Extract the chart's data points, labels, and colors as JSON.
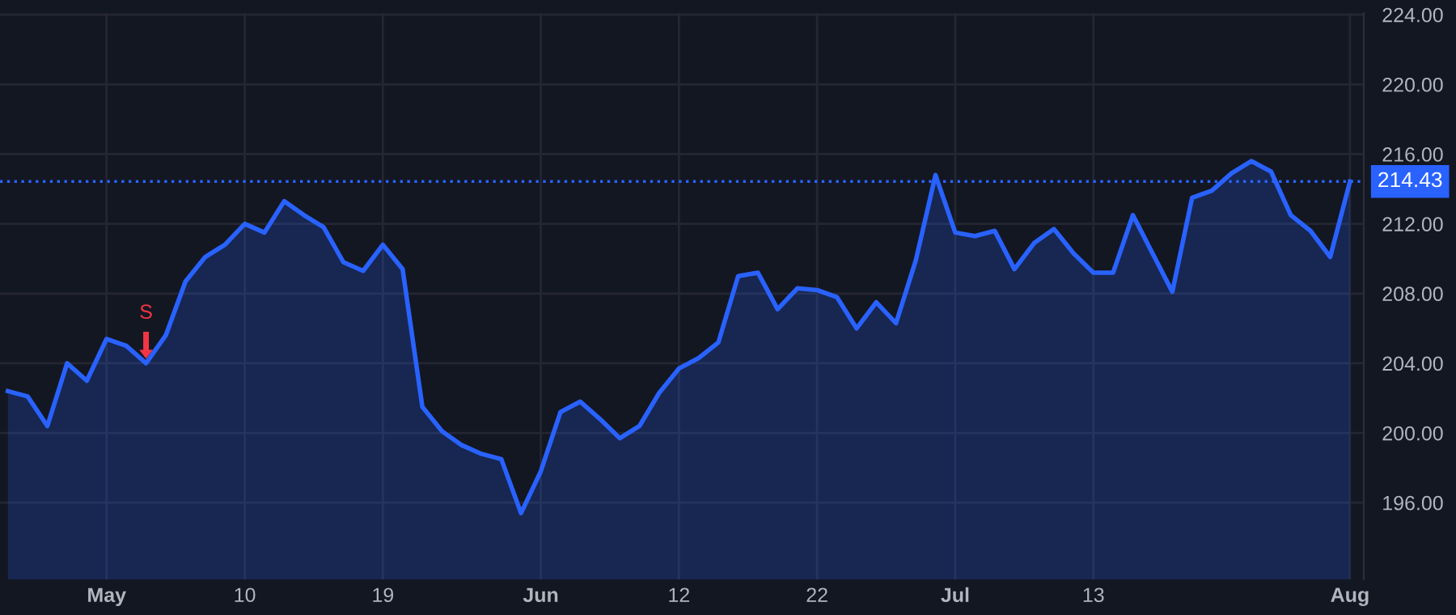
{
  "chart_data": {
    "type": "area",
    "categories": [
      null,
      null,
      null,
      null,
      null,
      "May",
      null,
      null,
      null,
      null,
      null,
      null,
      "10",
      null,
      null,
      null,
      null,
      null,
      null,
      "19",
      null,
      null,
      null,
      null,
      null,
      null,
      null,
      "Jun",
      null,
      null,
      null,
      null,
      null,
      null,
      "12",
      null,
      null,
      null,
      null,
      null,
      null,
      "22",
      null,
      null,
      null,
      null,
      null,
      null,
      "Jul",
      null,
      null,
      null,
      null,
      null,
      null,
      "13",
      null,
      null,
      null,
      null,
      null,
      null,
      null,
      null,
      null,
      null,
      null,
      null,
      "Aug"
    ],
    "series": [
      {
        "color": "#2962ff",
        "values": [
          202.4,
          202.1,
          200.4,
          204.0,
          203.0,
          205.4,
          205.0,
          204.0,
          205.6,
          208.7,
          210.1,
          210.8,
          212.0,
          211.5,
          213.3,
          212.5,
          211.8,
          209.8,
          209.3,
          210.8,
          209.4,
          201.5,
          200.1,
          199.3,
          198.8,
          198.5,
          195.4,
          197.8,
          201.2,
          201.8,
          200.8,
          199.7,
          200.4,
          202.3,
          203.7,
          204.3,
          205.2,
          209.0,
          209.2,
          207.1,
          208.3,
          208.2,
          207.8,
          206.0,
          207.5,
          206.3,
          209.9,
          214.8,
          211.5,
          211.3,
          211.6,
          209.4,
          210.9,
          211.7,
          210.3,
          209.2,
          209.2,
          212.5,
          210.3,
          208.1,
          213.5,
          213.9,
          214.9,
          215.6,
          215.0,
          212.5,
          211.6,
          210.1,
          214.43
        ]
      }
    ],
    "ylim": [
      191.6,
      224.1
    ],
    "yticks": [
      {
        "value": 196,
        "label": "196.00"
      },
      {
        "value": 200,
        "label": "200.00"
      },
      {
        "value": 204,
        "label": "204.00"
      },
      {
        "value": 208,
        "label": "208.00"
      },
      {
        "value": 212,
        "label": "212.00"
      },
      {
        "value": 216,
        "label": "216.00"
      },
      {
        "value": 220,
        "label": "220.00"
      },
      {
        "value": 224,
        "label": "224.00"
      }
    ],
    "ref_lines": [
      {
        "axis": "y",
        "value": 214.43,
        "label": "214.43",
        "color": "#2962ff",
        "line_style": "dotted"
      }
    ],
    "annotations": [
      {
        "text": "S",
        "y": 204.0
      }
    ],
    "grid": true
  }
}
